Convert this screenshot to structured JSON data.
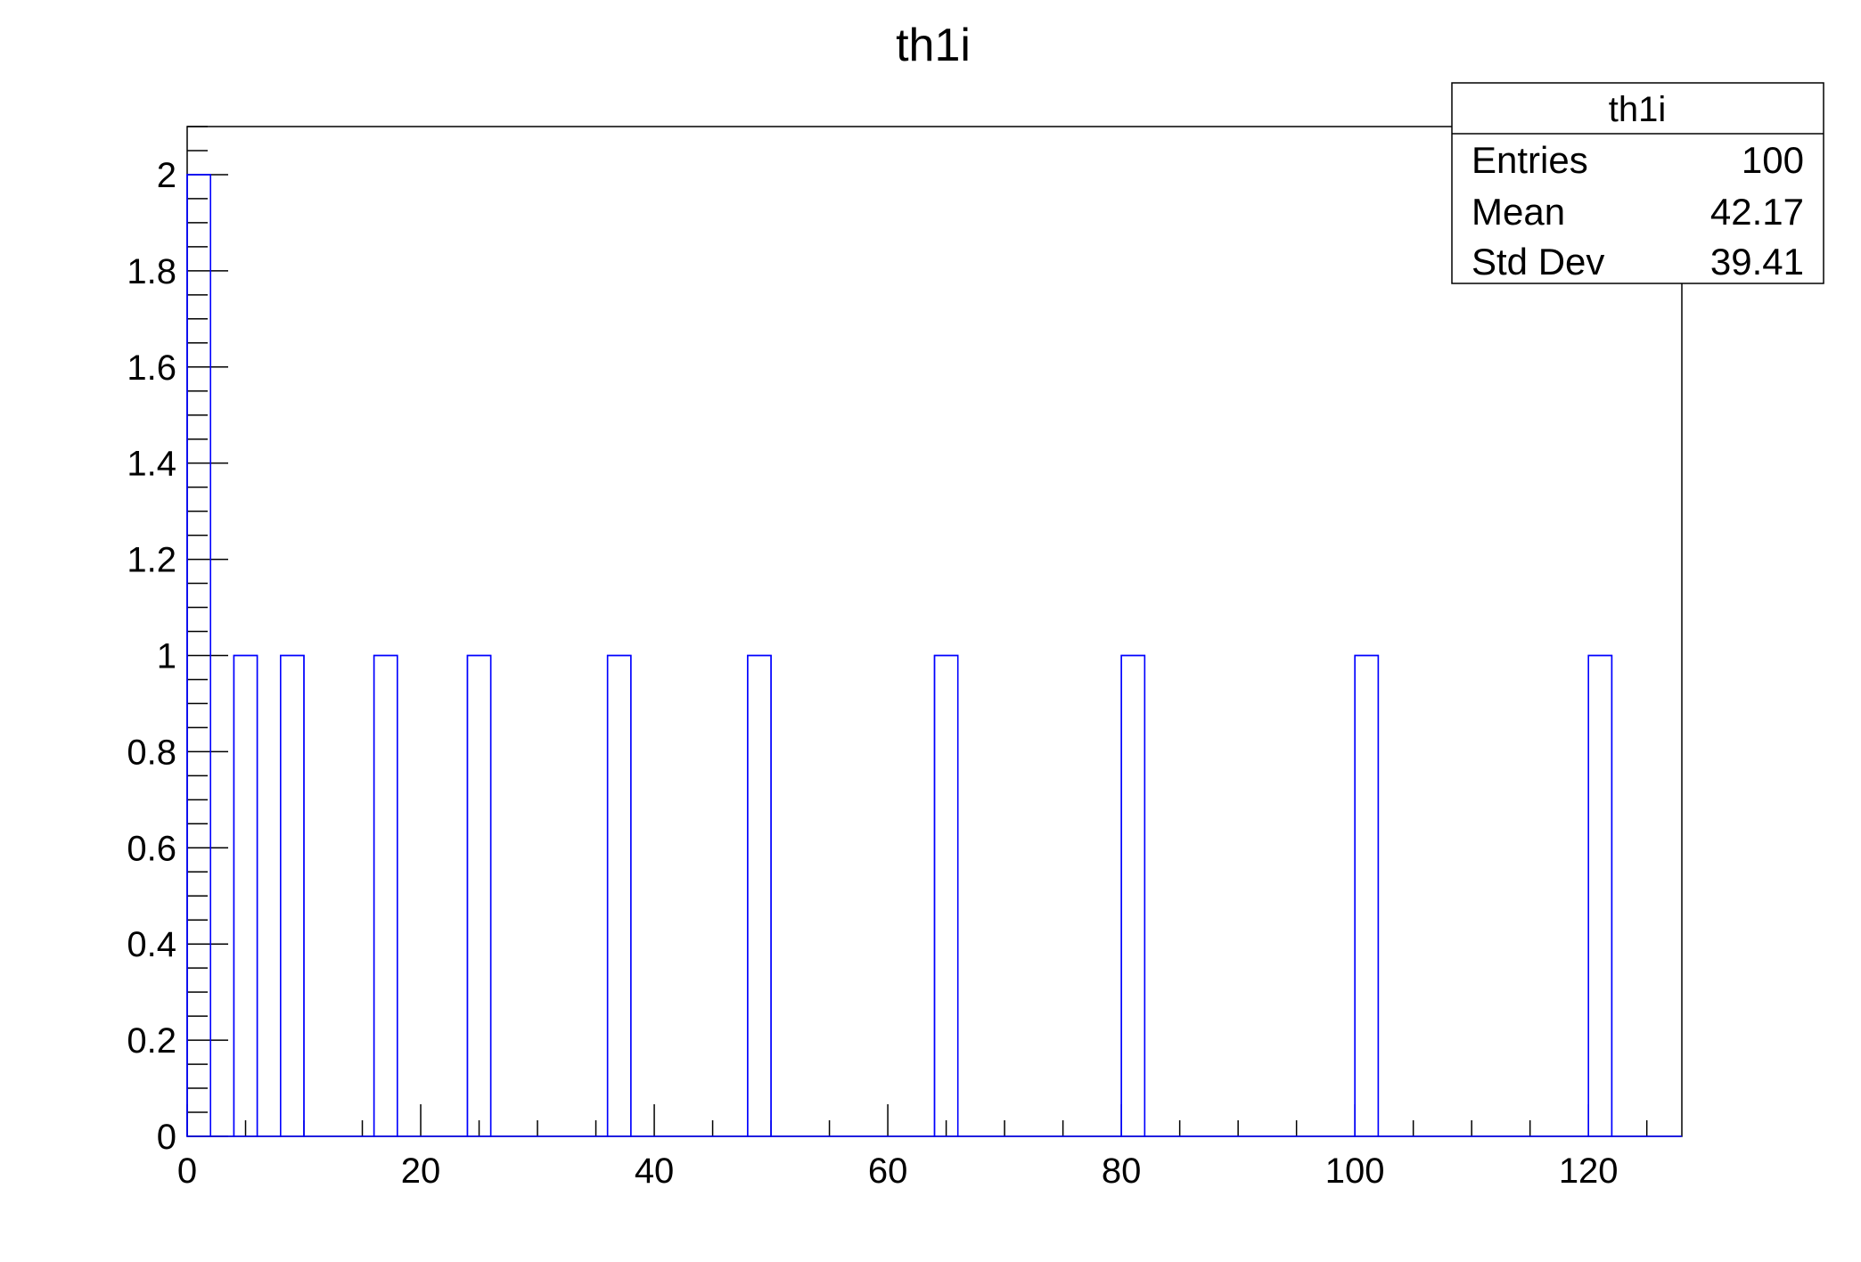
{
  "chart_data": {
    "type": "bar",
    "title": "th1i",
    "xlabel": "",
    "ylabel": "",
    "xlim": [
      0,
      128
    ],
    "ylim": [
      0,
      2.1
    ],
    "bin_width": 2,
    "x_ticks": [
      "0",
      "20",
      "40",
      "60",
      "80",
      "100",
      "120"
    ],
    "y_ticks": [
      "0",
      "0.2",
      "0.4",
      "0.6",
      "0.8",
      "1",
      "1.2",
      "1.4",
      "1.6",
      "1.8",
      "2"
    ],
    "bins": [
      {
        "low": 0,
        "high": 2,
        "value": 2
      },
      {
        "low": 4,
        "high": 6,
        "value": 1
      },
      {
        "low": 8,
        "high": 10,
        "value": 1
      },
      {
        "low": 16,
        "high": 18,
        "value": 1
      },
      {
        "low": 24,
        "high": 26,
        "value": 1
      },
      {
        "low": 36,
        "high": 38,
        "value": 1
      },
      {
        "low": 48,
        "high": 50,
        "value": 1
      },
      {
        "low": 64,
        "high": 66,
        "value": 1
      },
      {
        "low": 80,
        "high": 82,
        "value": 1
      },
      {
        "low": 100,
        "high": 102,
        "value": 1
      },
      {
        "low": 120,
        "high": 122,
        "value": 1
      }
    ],
    "line_color": "#0000ff",
    "grid": false,
    "legend": "none",
    "stats_box": {
      "placement": "top-right",
      "name": "th1i",
      "rows": [
        {
          "label": "Entries",
          "value": "100"
        },
        {
          "label": "Mean",
          "value": "42.17"
        },
        {
          "label": "Std Dev",
          "value": "39.41"
        }
      ]
    }
  }
}
